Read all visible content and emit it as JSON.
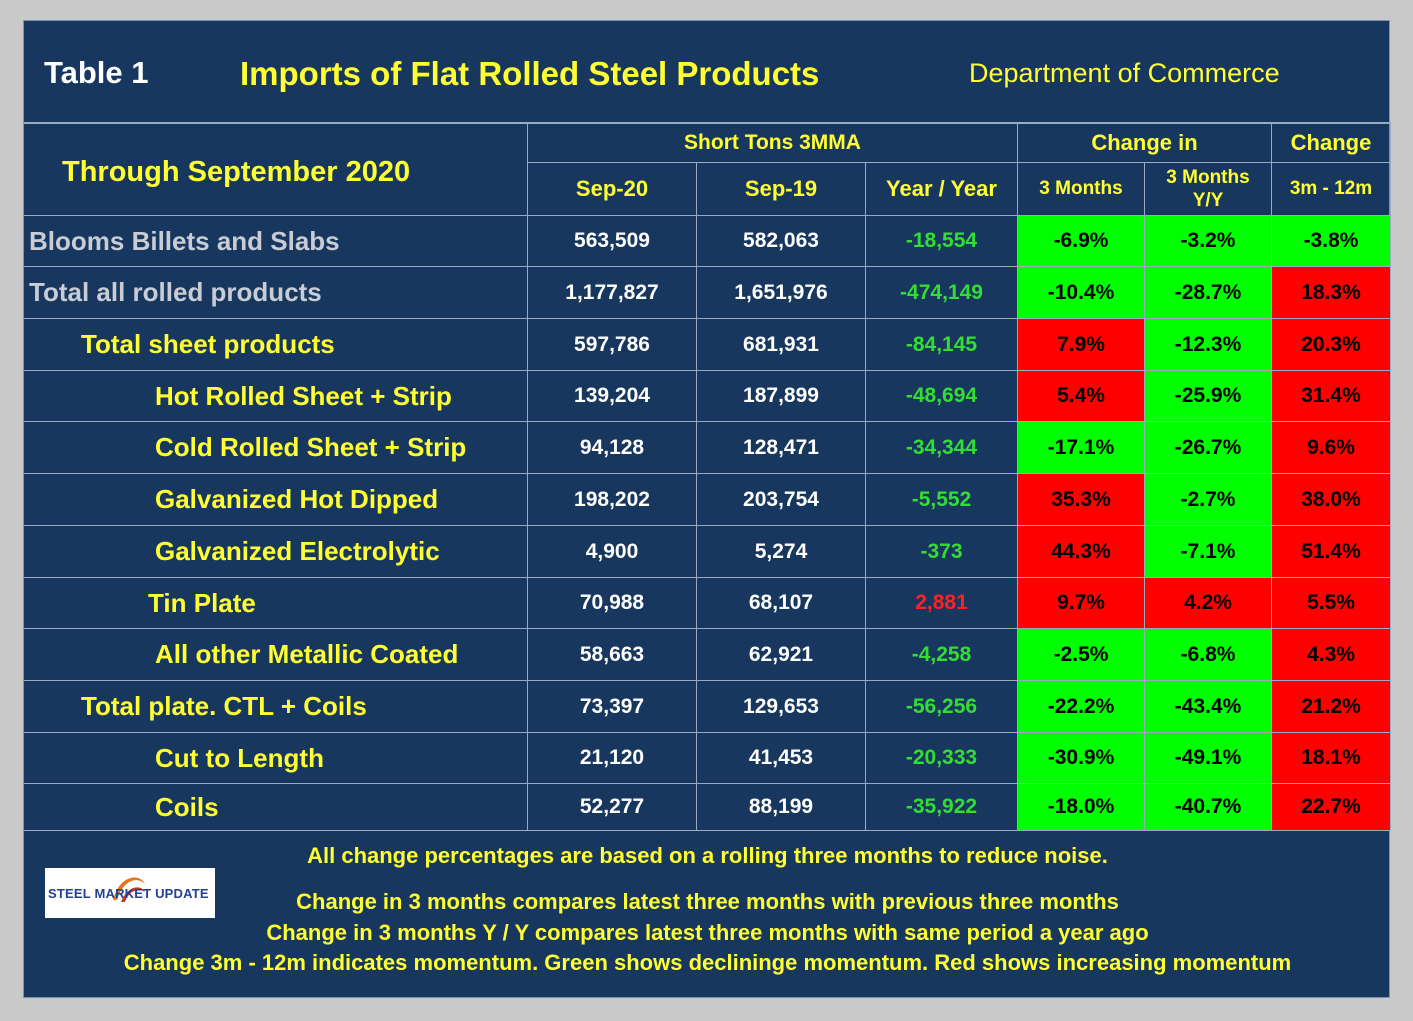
{
  "header": {
    "table_label": "Table 1",
    "title": "Imports of Flat Rolled Steel Products",
    "source": "Department of Commerce"
  },
  "columns": {
    "period_label": "Through September 2020",
    "group_tons": "Short Tons 3MMA",
    "group_change": "Change in",
    "group_change2": "Change",
    "sep20": "Sep-20",
    "sep19": "Sep-19",
    "yoy": "Year / Year",
    "three_months": "3 Months",
    "three_months_yy_line1": "3 Months",
    "three_months_yy_line2": "Y/Y",
    "momentum": "3m - 12m"
  },
  "rows": [
    {
      "label": "Blooms Billets and Slabs",
      "sep20": "563,509",
      "sep19": "582,063",
      "yoy": "-18,554",
      "m3": "-6.9%",
      "m3yy": "-3.2%",
      "mom": "-3.8%"
    },
    {
      "label": "Total all rolled products",
      "sep20": "1,177,827",
      "sep19": "1,651,976",
      "yoy": "-474,149",
      "m3": "-10.4%",
      "m3yy": "-28.7%",
      "mom": "18.3%"
    },
    {
      "label": "Total sheet products",
      "sep20": "597,786",
      "sep19": "681,931",
      "yoy": "-84,145",
      "m3": "7.9%",
      "m3yy": "-12.3%",
      "mom": "20.3%"
    },
    {
      "label": "Hot Rolled Sheet + Strip",
      "sep20": "139,204",
      "sep19": "187,899",
      "yoy": "-48,694",
      "m3": "5.4%",
      "m3yy": "-25.9%",
      "mom": "31.4%"
    },
    {
      "label": "Cold Rolled Sheet + Strip",
      "sep20": "94,128",
      "sep19": "128,471",
      "yoy": "-34,344",
      "m3": "-17.1%",
      "m3yy": "-26.7%",
      "mom": "9.6%"
    },
    {
      "label": "Galvanized Hot Dipped",
      "sep20": "198,202",
      "sep19": "203,754",
      "yoy": "-5,552",
      "m3": "35.3%",
      "m3yy": "-2.7%",
      "mom": "38.0%"
    },
    {
      "label": "Galvanized Electrolytic",
      "sep20": "4,900",
      "sep19": "5,274",
      "yoy": "-373",
      "m3": "44.3%",
      "m3yy": "-7.1%",
      "mom": "51.4%"
    },
    {
      "label": "Tin Plate",
      "sep20": "70,988",
      "sep19": "68,107",
      "yoy": "2,881",
      "m3": "9.7%",
      "m3yy": "4.2%",
      "mom": "5.5%"
    },
    {
      "label": "All other Metallic Coated",
      "sep20": "58,663",
      "sep19": "62,921",
      "yoy": "-4,258",
      "m3": "-2.5%",
      "m3yy": "-6.8%",
      "mom": "4.3%"
    },
    {
      "label": "Total plate. CTL + Coils",
      "sep20": "73,397",
      "sep19": "129,653",
      "yoy": "-56,256",
      "m3": "-22.2%",
      "m3yy": "-43.4%",
      "mom": "21.2%"
    },
    {
      "label": "Cut to Length",
      "sep20": "21,120",
      "sep19": "41,453",
      "yoy": "-20,333",
      "m3": "-30.9%",
      "m3yy": "-49.1%",
      "mom": "18.1%"
    },
    {
      "label": "Coils",
      "sep20": "52,277",
      "sep19": "88,199",
      "yoy": "-35,922",
      "m3": "-18.0%",
      "m3yy": "-40.7%",
      "mom": "22.7%"
    }
  ],
  "notes": {
    "line1": "All change percentages are based on a rolling three months to reduce noise.",
    "line2": "Change in 3 months compares latest three months with previous three months",
    "line3": "Change in 3 months  Y / Y compares latest three months with same period a year ago",
    "line4": "Change 3m - 12m indicates momentum. Green shows declininge momentum. Red shows increasing momentum"
  },
  "logo": {
    "text": "STEEL MARKET UPDATE"
  },
  "colors": {
    "background": "#17375e",
    "title_yellow": "#ffff33",
    "label_gray": "#c8ccd4",
    "increase_green": "#00ff00",
    "decrease_red": "#ff0000",
    "yoy_green": "#33dd33",
    "yoy_red": "#ff2222"
  }
}
